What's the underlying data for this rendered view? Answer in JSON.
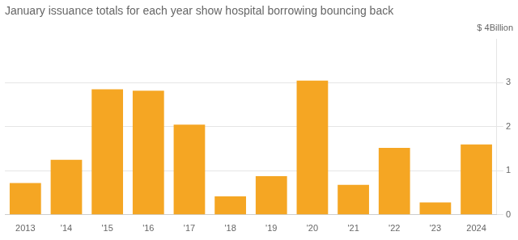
{
  "chart_data": {
    "type": "bar",
    "title": "January issuance totals for each year show hospital borrowing bouncing back",
    "ylabel": "$ 4Billion",
    "categories": [
      "2013",
      "'14",
      "'15",
      "'16",
      "'17",
      "'18",
      "'19",
      "'20",
      "'21",
      "'22",
      "'23",
      "2024"
    ],
    "values": [
      0.72,
      1.25,
      2.85,
      2.82,
      2.05,
      0.42,
      0.88,
      3.05,
      0.68,
      1.52,
      0.28,
      1.6
    ],
    "color": "#F5A623",
    "ylim": [
      0,
      4
    ],
    "yticks": [
      0,
      1,
      2,
      3
    ],
    "grid": true
  }
}
